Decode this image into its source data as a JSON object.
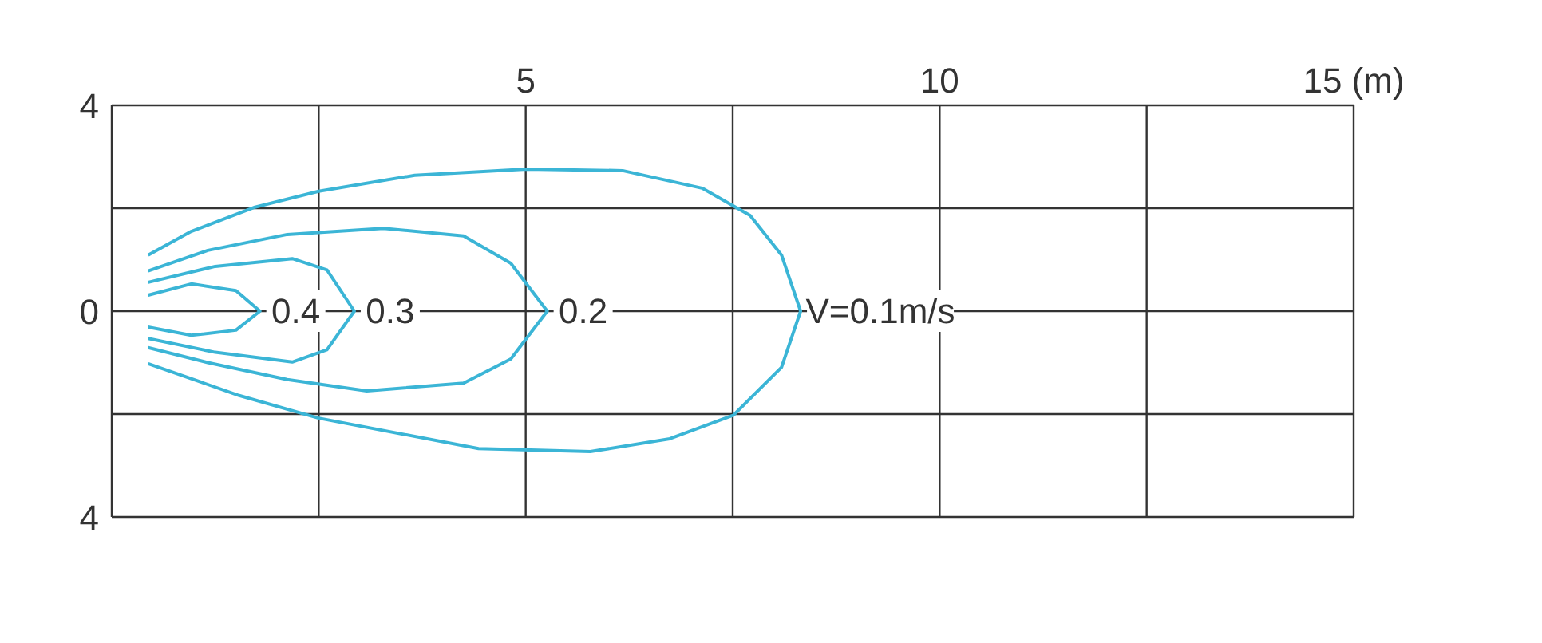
{
  "chart_data": {
    "type": "line",
    "xlim": [
      0,
      15
    ],
    "xticks": [
      {
        "value": 0,
        "label": null
      },
      {
        "value": 2.5,
        "label": null
      },
      {
        "value": 5,
        "label": "5"
      },
      {
        "value": 7.5,
        "label": null
      },
      {
        "value": 10,
        "label": "10"
      },
      {
        "value": 12.5,
        "label": null
      },
      {
        "value": 15,
        "label": "15 (m)"
      }
    ],
    "ylim": [
      -4,
      4
    ],
    "yticks": [
      {
        "value": 4,
        "label": "4"
      },
      {
        "value": 2,
        "label": null
      },
      {
        "value": 0,
        "label": "0"
      },
      {
        "value": -2,
        "label": null
      },
      {
        "value": -4,
        "label": "4"
      }
    ],
    "grid": true,
    "marker": "none",
    "line_style": "solid",
    "series": [
      {
        "name": "V=0.1m/s",
        "color": "#3bb5d6",
        "x": [
          0.44,
          0.96,
          1.73,
          2.5,
          3.66,
          5.01,
          6.17,
          7.13,
          7.71,
          8.09,
          8.32,
          8.09,
          7.51,
          6.74,
          5.78,
          4.43,
          2.5,
          1.54,
          0.44
        ],
        "values": [
          1.09,
          1.55,
          2.02,
          2.33,
          2.64,
          2.76,
          2.73,
          2.39,
          1.86,
          1.09,
          0,
          -1.09,
          -2.02,
          -2.48,
          -2.73,
          -2.67,
          -2.08,
          -1.64,
          -1.02
        ]
      },
      {
        "name": "0.2",
        "color": "#3bb5d6",
        "x": [
          0.44,
          1.16,
          2.12,
          3.28,
          4.25,
          4.82,
          5.26,
          4.82,
          4.25,
          3.08,
          2.12,
          1.16,
          0.44
        ],
        "values": [
          0.78,
          1.18,
          1.49,
          1.61,
          1.46,
          0.93,
          0,
          -0.93,
          -1.4,
          -1.55,
          -1.33,
          -1.0,
          -0.71
        ]
      },
      {
        "name": "0.3",
        "color": "#3bb5d6",
        "x": [
          0.44,
          1.25,
          2.18,
          2.6,
          2.93,
          2.6,
          2.18,
          1.25,
          0.44
        ],
        "values": [
          0.56,
          0.87,
          1.02,
          0.8,
          0,
          -0.75,
          -0.99,
          -0.8,
          -0.53
        ]
      },
      {
        "name": "0.4",
        "color": "#3bb5d6",
        "x": [
          0.44,
          0.96,
          1.5,
          1.79,
          1.5,
          0.96,
          0.44
        ],
        "values": [
          0.31,
          0.53,
          0.4,
          0,
          -0.37,
          -0.47,
          -0.31
        ]
      }
    ]
  }
}
